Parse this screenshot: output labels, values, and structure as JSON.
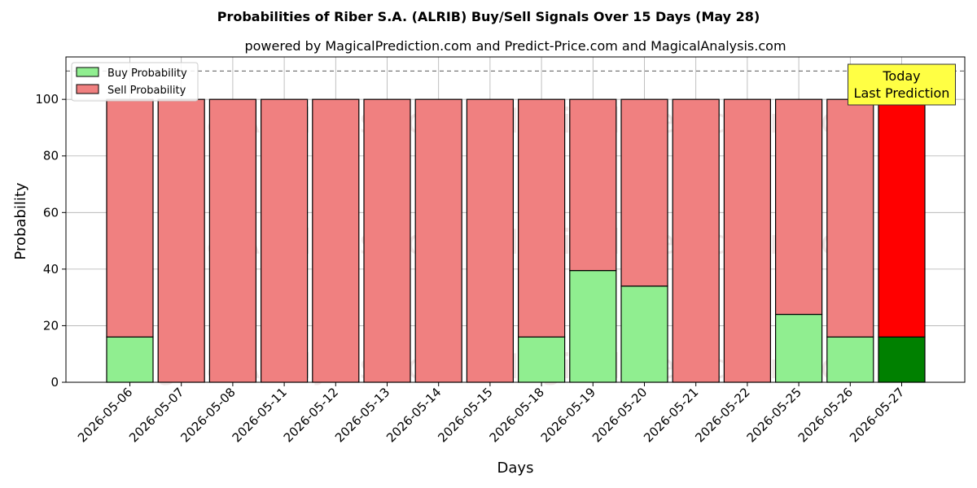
{
  "chart_data": {
    "type": "bar",
    "stacked": true,
    "title": "Probabilities of Riber S.A. (ALRIB) Buy/Sell Signals Over 15 Days (May 28)",
    "subtitle": "powered by MagicalPrediction.com and Predict-Price.com and MagicalAnalysis.com",
    "xlabel": "Days",
    "ylabel": "Probability",
    "ylim": [
      0,
      115
    ],
    "yticks": [
      0,
      20,
      40,
      60,
      80,
      100
    ],
    "grid": true,
    "legend_position": "top-left",
    "reference_line": 110,
    "categories": [
      "2026-05-06",
      "2026-05-07",
      "2026-05-08",
      "2026-05-11",
      "2026-05-12",
      "2026-05-13",
      "2026-05-14",
      "2026-05-15",
      "2026-05-18",
      "2026-05-19",
      "2026-05-20",
      "2026-05-21",
      "2026-05-22",
      "2026-05-25",
      "2026-05-26",
      "2026-05-27"
    ],
    "series": [
      {
        "name": "Buy Probability",
        "color": "#90ee90",
        "highlight_color": "#008000",
        "values": [
          16,
          0,
          0,
          0,
          0,
          0,
          0,
          0,
          16,
          39.5,
          34,
          0,
          0,
          24,
          16,
          16
        ]
      },
      {
        "name": "Sell Probability",
        "color": "#f08080",
        "highlight_color": "#ff0000",
        "values": [
          84,
          100,
          100,
          100,
          100,
          100,
          100,
          100,
          84,
          60.5,
          66,
          100,
          100,
          76,
          84,
          84
        ]
      }
    ],
    "annotation": {
      "lines": [
        "Today",
        "Last Prediction"
      ],
      "category": "2026-05-27",
      "box_color": "#ffff44"
    },
    "watermark": "MagicalAnalysis.com    MagicalPrediction.com"
  }
}
